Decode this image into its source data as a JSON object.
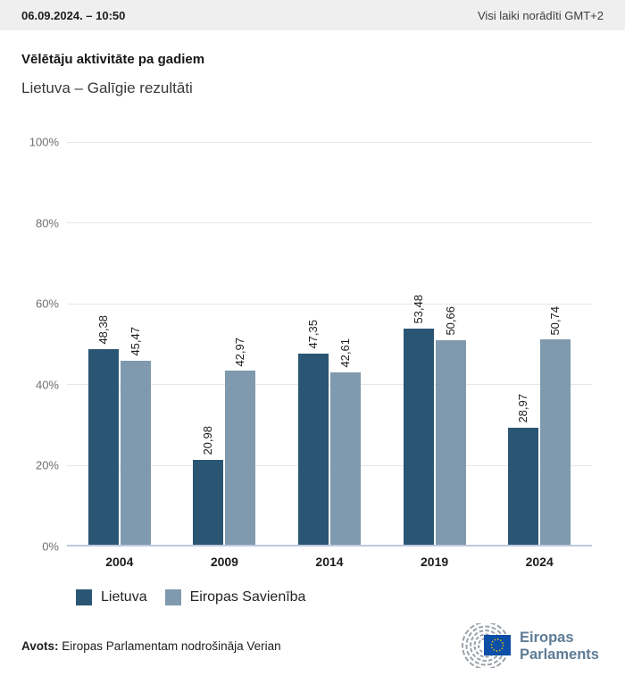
{
  "header": {
    "datetime": "06.09.2024. – 10:50",
    "timezone_note": "Visi laiki norādīti GMT+2"
  },
  "title": "Vēlētāju aktivitāte pa gadiem",
  "subtitle": "Lietuva – Galīgie rezultāti",
  "chart_data": {
    "type": "bar",
    "title": "Vēlētāju aktivitāte pa gadiem",
    "subtitle": "Lietuva – Galīgie rezultāti",
    "categories": [
      "2004",
      "2009",
      "2014",
      "2019",
      "2024"
    ],
    "series": [
      {
        "name": "Lietuva",
        "color": "#2a5674",
        "values": [
          48.38,
          20.98,
          47.35,
          53.48,
          28.97
        ]
      },
      {
        "name": "Eiropas Savienība",
        "color": "#7f9aae",
        "values": [
          45.47,
          42.97,
          42.61,
          50.66,
          50.74
        ]
      }
    ],
    "xlabel": "",
    "ylabel": "",
    "ylim": [
      0,
      100
    ],
    "yticks": [
      0,
      20,
      40,
      60,
      80,
      100
    ],
    "ytick_suffix": "%",
    "decimal_separator": ",",
    "value_label_decimals": 2,
    "value_labels": "rotated-90-ccw",
    "grid": true,
    "legend_position": "bottom"
  },
  "footer": {
    "source_label": "Avots:",
    "source_text": "Eiropas Parlamentam nodrošināja Verian",
    "logo": {
      "line1": "Eiropas",
      "line2": "Parlaments",
      "flag_color": "#0d4ea6",
      "star_color": "#ffcc00",
      "mark_color": "#99a1a8",
      "text_color": "#5e7c95"
    }
  }
}
